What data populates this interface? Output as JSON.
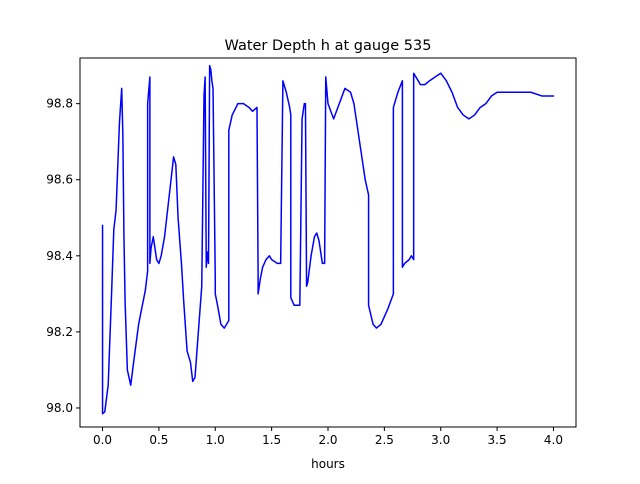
{
  "chart_data": {
    "type": "line",
    "title": "Water Depth h at gauge 535",
    "xlabel": "hours",
    "ylabel": "",
    "xlim": [
      -0.2,
      4.2
    ],
    "ylim": [
      97.95,
      98.92
    ],
    "xticks": [
      0.0,
      0.5,
      1.0,
      1.5,
      2.0,
      2.5,
      3.0,
      3.5,
      4.0
    ],
    "xtick_labels": [
      "0.0",
      "0.5",
      "1.0",
      "1.5",
      "2.0",
      "2.5",
      "3.0",
      "3.5",
      "4.0"
    ],
    "yticks": [
      98.0,
      98.2,
      98.4,
      98.6,
      98.8
    ],
    "ytick_labels": [
      "98.0",
      "98.2",
      "98.4",
      "98.6",
      "98.8"
    ],
    "grid": false,
    "legend": false,
    "colors": {
      "line": "#0000ff",
      "axes": "#000000",
      "background": "#ffffff"
    },
    "series": [
      {
        "x": [
          0.0,
          0.0,
          0.02,
          0.05,
          0.08,
          0.1,
          0.12,
          0.15,
          0.17,
          0.18,
          0.19,
          0.2,
          0.22,
          0.25,
          0.28,
          0.32,
          0.38,
          0.4,
          0.4,
          0.42,
          0.42,
          0.43,
          0.45,
          0.47,
          0.48,
          0.5,
          0.52,
          0.55,
          0.6,
          0.63,
          0.65,
          0.67,
          0.7,
          0.72,
          0.75,
          0.78,
          0.8,
          0.82,
          0.85,
          0.88,
          0.9,
          0.91,
          0.92,
          0.93,
          0.94,
          0.95,
          0.96,
          0.97,
          0.98,
          1.0,
          1.0,
          1.02,
          1.05,
          1.08,
          1.1,
          1.12,
          1.12,
          1.15,
          1.2,
          1.25,
          1.3,
          1.33,
          1.37,
          1.38,
          1.38,
          1.4,
          1.42,
          1.45,
          1.48,
          1.5,
          1.55,
          1.58,
          1.6,
          1.6,
          1.63,
          1.66,
          1.67,
          1.67,
          1.7,
          1.75,
          1.77,
          1.79,
          1.8,
          1.81,
          1.82,
          1.85,
          1.88,
          1.9,
          1.92,
          1.95,
          1.97,
          1.98,
          2.0,
          2.05,
          2.1,
          2.15,
          2.2,
          2.23,
          2.28,
          2.33,
          2.36,
          2.36,
          2.4,
          2.43,
          2.47,
          2.53,
          2.58,
          2.58,
          2.62,
          2.66,
          2.66,
          2.68,
          2.72,
          2.74,
          2.76,
          2.76,
          2.78,
          2.82,
          2.86,
          2.9,
          2.95,
          3.0,
          3.05,
          3.1,
          3.15,
          3.2,
          3.25,
          3.3,
          3.35,
          3.4,
          3.45,
          3.5,
          3.55,
          3.6,
          3.7,
          3.8,
          3.9,
          4.0
        ],
        "y": [
          98.48,
          97.985,
          97.99,
          98.06,
          98.3,
          98.47,
          98.52,
          98.75,
          98.84,
          98.72,
          98.45,
          98.28,
          98.1,
          98.06,
          98.13,
          98.22,
          98.31,
          98.36,
          98.8,
          98.87,
          98.38,
          98.42,
          98.45,
          98.41,
          98.39,
          98.38,
          98.4,
          98.45,
          98.58,
          98.66,
          98.64,
          98.5,
          98.38,
          98.28,
          98.15,
          98.12,
          98.07,
          98.08,
          98.2,
          98.32,
          98.82,
          98.87,
          98.37,
          98.41,
          98.38,
          98.9,
          98.89,
          98.86,
          98.84,
          98.34,
          98.3,
          98.27,
          98.22,
          98.21,
          98.22,
          98.23,
          98.73,
          98.77,
          98.8,
          98.8,
          98.79,
          98.78,
          98.79,
          98.35,
          98.3,
          98.34,
          98.37,
          98.39,
          98.4,
          98.39,
          98.38,
          98.38,
          98.86,
          98.86,
          98.83,
          98.79,
          98.77,
          98.29,
          98.27,
          98.27,
          98.76,
          98.8,
          98.8,
          98.32,
          98.33,
          98.4,
          98.45,
          98.46,
          98.44,
          98.38,
          98.38,
          98.87,
          98.8,
          98.76,
          98.8,
          98.84,
          98.83,
          98.8,
          98.7,
          98.6,
          98.56,
          98.27,
          98.22,
          98.21,
          98.22,
          98.26,
          98.3,
          98.79,
          98.83,
          98.86,
          98.37,
          98.38,
          98.39,
          98.4,
          98.39,
          98.88,
          98.87,
          98.85,
          98.85,
          98.86,
          98.87,
          98.88,
          98.86,
          98.83,
          98.79,
          98.77,
          98.76,
          98.77,
          98.79,
          98.8,
          98.82,
          98.83,
          98.83,
          98.83,
          98.83,
          98.83,
          98.82,
          98.82
        ]
      }
    ]
  }
}
